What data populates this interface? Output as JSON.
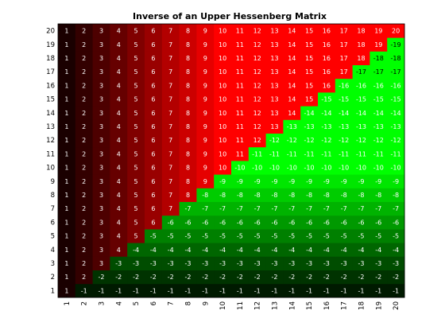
{
  "chart_data": {
    "type": "heatmap",
    "title": "Inverse of an Upper Hessenberg Matrix",
    "xlabel": "",
    "ylabel": "",
    "size": 20,
    "x_ticks": [
      "1",
      "2",
      "3",
      "4",
      "5",
      "6",
      "7",
      "8",
      "9",
      "10",
      "11",
      "12",
      "13",
      "14",
      "15",
      "16",
      "17",
      "18",
      "19",
      "20"
    ],
    "y_ticks": [
      "1",
      "2",
      "3",
      "4",
      "5",
      "6",
      "7",
      "8",
      "9",
      "10",
      "11",
      "12",
      "13",
      "14",
      "15",
      "16",
      "17",
      "18",
      "19",
      "20"
    ],
    "rule": "value(row r, col c) = c if c <= r else -r ; row 1 at bottom, row 20 at top",
    "matrix": [
      [
        1,
        -1,
        -1,
        -1,
        -1,
        -1,
        -1,
        -1,
        -1,
        -1,
        -1,
        -1,
        -1,
        -1,
        -1,
        -1,
        -1,
        -1,
        -1,
        -1
      ],
      [
        1,
        2,
        -2,
        -2,
        -2,
        -2,
        -2,
        -2,
        -2,
        -2,
        -2,
        -2,
        -2,
        -2,
        -2,
        -2,
        -2,
        -2,
        -2,
        -2
      ],
      [
        1,
        2,
        3,
        -3,
        -3,
        -3,
        -3,
        -3,
        -3,
        -3,
        -3,
        -3,
        -3,
        -3,
        -3,
        -3,
        -3,
        -3,
        -3,
        -3
      ],
      [
        1,
        2,
        3,
        4,
        -4,
        -4,
        -4,
        -4,
        -4,
        -4,
        -4,
        -4,
        -4,
        -4,
        -4,
        -4,
        -4,
        -4,
        -4,
        -4
      ],
      [
        1,
        2,
        3,
        4,
        5,
        -5,
        -5,
        -5,
        -5,
        -5,
        -5,
        -5,
        -5,
        -5,
        -5,
        -5,
        -5,
        -5,
        -5,
        -5
      ],
      [
        1,
        2,
        3,
        4,
        5,
        6,
        -6,
        -6,
        -6,
        -6,
        -6,
        -6,
        -6,
        -6,
        -6,
        -6,
        -6,
        -6,
        -6,
        -6
      ],
      [
        1,
        2,
        3,
        4,
        5,
        6,
        7,
        -7,
        -7,
        -7,
        -7,
        -7,
        -7,
        -7,
        -7,
        -7,
        -7,
        -7,
        -7,
        -7
      ],
      [
        1,
        2,
        3,
        4,
        5,
        6,
        7,
        8,
        -8,
        -8,
        -8,
        -8,
        -8,
        -8,
        -8,
        -8,
        -8,
        -8,
        -8,
        -8
      ],
      [
        1,
        2,
        3,
        4,
        5,
        6,
        7,
        8,
        9,
        -9,
        -9,
        -9,
        -9,
        -9,
        -9,
        -9,
        -9,
        -9,
        -9,
        -9
      ],
      [
        1,
        2,
        3,
        4,
        5,
        6,
        7,
        8,
        9,
        10,
        -10,
        -10,
        -10,
        -10,
        -10,
        -10,
        -10,
        -10,
        -10,
        -10
      ],
      [
        1,
        2,
        3,
        4,
        5,
        6,
        7,
        8,
        9,
        10,
        11,
        -11,
        -11,
        -11,
        -11,
        -11,
        -11,
        -11,
        -11,
        -11
      ],
      [
        1,
        2,
        3,
        4,
        5,
        6,
        7,
        8,
        9,
        10,
        11,
        12,
        -12,
        -12,
        -12,
        -12,
        -12,
        -12,
        -12,
        -12
      ],
      [
        1,
        2,
        3,
        4,
        5,
        6,
        7,
        8,
        9,
        10,
        11,
        12,
        13,
        -13,
        -13,
        -13,
        -13,
        -13,
        -13,
        -13
      ],
      [
        1,
        2,
        3,
        4,
        5,
        6,
        7,
        8,
        9,
        10,
        11,
        12,
        13,
        14,
        -14,
        -14,
        -14,
        -14,
        -14,
        -14
      ],
      [
        1,
        2,
        3,
        4,
        5,
        6,
        7,
        8,
        9,
        10,
        11,
        12,
        13,
        14,
        15,
        -15,
        -15,
        -15,
        -15,
        -15
      ],
      [
        1,
        2,
        3,
        4,
        5,
        6,
        7,
        8,
        9,
        10,
        11,
        12,
        13,
        14,
        15,
        16,
        -16,
        -16,
        -16,
        -16
      ],
      [
        1,
        2,
        3,
        4,
        5,
        6,
        7,
        8,
        9,
        10,
        11,
        12,
        13,
        14,
        15,
        16,
        17,
        -17,
        -17,
        -17
      ],
      [
        1,
        2,
        3,
        4,
        5,
        6,
        7,
        8,
        9,
        10,
        11,
        12,
        13,
        14,
        15,
        16,
        17,
        18,
        -18,
        -18
      ],
      [
        1,
        2,
        3,
        4,
        5,
        6,
        7,
        8,
        9,
        10,
        11,
        12,
        13,
        14,
        15,
        16,
        17,
        18,
        19,
        -19
      ],
      [
        1,
        2,
        3,
        4,
        5,
        6,
        7,
        8,
        9,
        10,
        11,
        12,
        13,
        14,
        15,
        16,
        17,
        18,
        19,
        20
      ]
    ],
    "colormap": {
      "positive_dark": "#000000",
      "positive_bright": "#ff0000",
      "negative_dark": "#000000",
      "negative_bright": "#00ff00"
    },
    "grid": false,
    "legend": "none"
  }
}
